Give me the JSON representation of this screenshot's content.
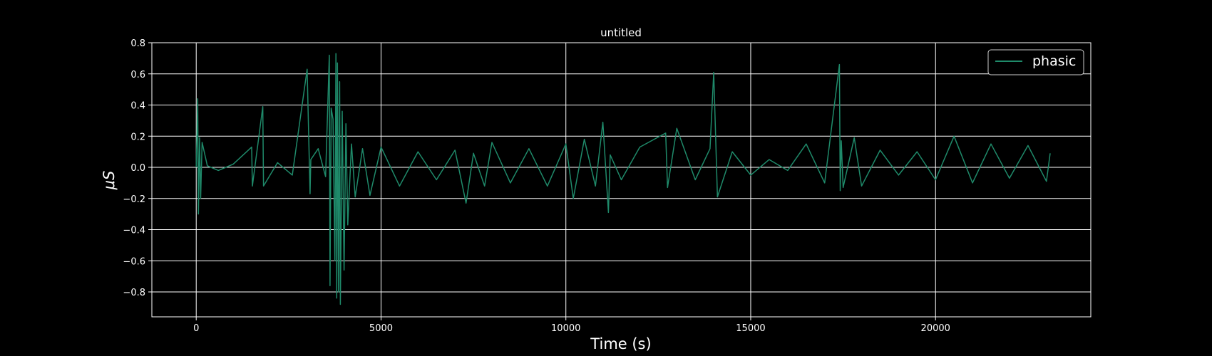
{
  "chart_data": {
    "type": "line",
    "title": "untitled",
    "xlabel": "Time (s)",
    "ylabel": "μS",
    "xlim": [
      -1200,
      24200
    ],
    "ylim": [
      -0.96,
      0.8
    ],
    "xticks": [
      0,
      5000,
      10000,
      15000,
      20000
    ],
    "xtick_labels": [
      "0",
      "5000",
      "10000",
      "15000",
      "20000"
    ],
    "yticks": [
      -0.8,
      -0.6,
      -0.4,
      -0.2,
      0.0,
      0.2,
      0.4,
      0.6,
      0.8
    ],
    "ytick_labels": [
      "−0.8",
      "−0.6",
      "−0.4",
      "−0.2",
      "0.0",
      "0.2",
      "0.4",
      "0.6",
      "0.8"
    ],
    "grid": true,
    "legend_position": "top-right",
    "colors": {
      "background": "#000000",
      "axes": "#ffffff",
      "grid": "#ffffff",
      "series": "#1f8a6a"
    },
    "series": [
      {
        "name": "phasic",
        "x": [
          0,
          40,
          60,
          90,
          120,
          160,
          300,
          600,
          1000,
          1500,
          1520,
          1800,
          1820,
          2200,
          2600,
          3000,
          3080,
          3100,
          3300,
          3500,
          3600,
          3620,
          3650,
          3700,
          3750,
          3780,
          3800,
          3820,
          3850,
          3880,
          3900,
          3950,
          4000,
          4050,
          4100,
          4200,
          4300,
          4500,
          4700,
          5000,
          5500,
          6000,
          6500,
          7000,
          7300,
          7500,
          7800,
          8000,
          8500,
          9000,
          9500,
          10000,
          10200,
          10500,
          10800,
          11000,
          11150,
          11200,
          11500,
          12000,
          12700,
          12750,
          13000,
          13500,
          13900,
          14000,
          14100,
          14500,
          15000,
          15500,
          16000,
          16500,
          17000,
          17400,
          17420,
          17450,
          17500,
          17800,
          18000,
          18500,
          19000,
          19500,
          20000,
          20500,
          21000,
          21500,
          22000,
          22500,
          23000,
          23100
        ],
        "values": [
          0.0,
          0.44,
          -0.3,
          0.19,
          -0.2,
          0.16,
          0.01,
          -0.02,
          0.02,
          0.13,
          -0.12,
          0.39,
          -0.12,
          0.03,
          -0.05,
          0.63,
          -0.17,
          0.05,
          0.12,
          -0.06,
          0.72,
          -0.76,
          0.38,
          0.31,
          -0.6,
          0.73,
          -0.84,
          0.67,
          -0.8,
          0.55,
          -0.88,
          0.36,
          -0.66,
          0.28,
          -0.37,
          0.15,
          -0.19,
          0.12,
          -0.18,
          0.13,
          -0.12,
          0.1,
          -0.08,
          0.11,
          -0.23,
          0.09,
          -0.12,
          0.16,
          -0.1,
          0.12,
          -0.12,
          0.15,
          -0.2,
          0.18,
          -0.12,
          0.29,
          -0.29,
          0.08,
          -0.08,
          0.13,
          0.22,
          -0.13,
          0.25,
          -0.08,
          0.12,
          0.61,
          -0.19,
          0.1,
          -0.05,
          0.05,
          -0.02,
          0.15,
          -0.1,
          0.66,
          -0.15,
          0.17,
          -0.13,
          0.19,
          -0.12,
          0.11,
          -0.05,
          0.1,
          -0.08,
          0.2,
          -0.1,
          0.15,
          -0.07,
          0.14,
          -0.09,
          0.09
        ]
      }
    ]
  }
}
